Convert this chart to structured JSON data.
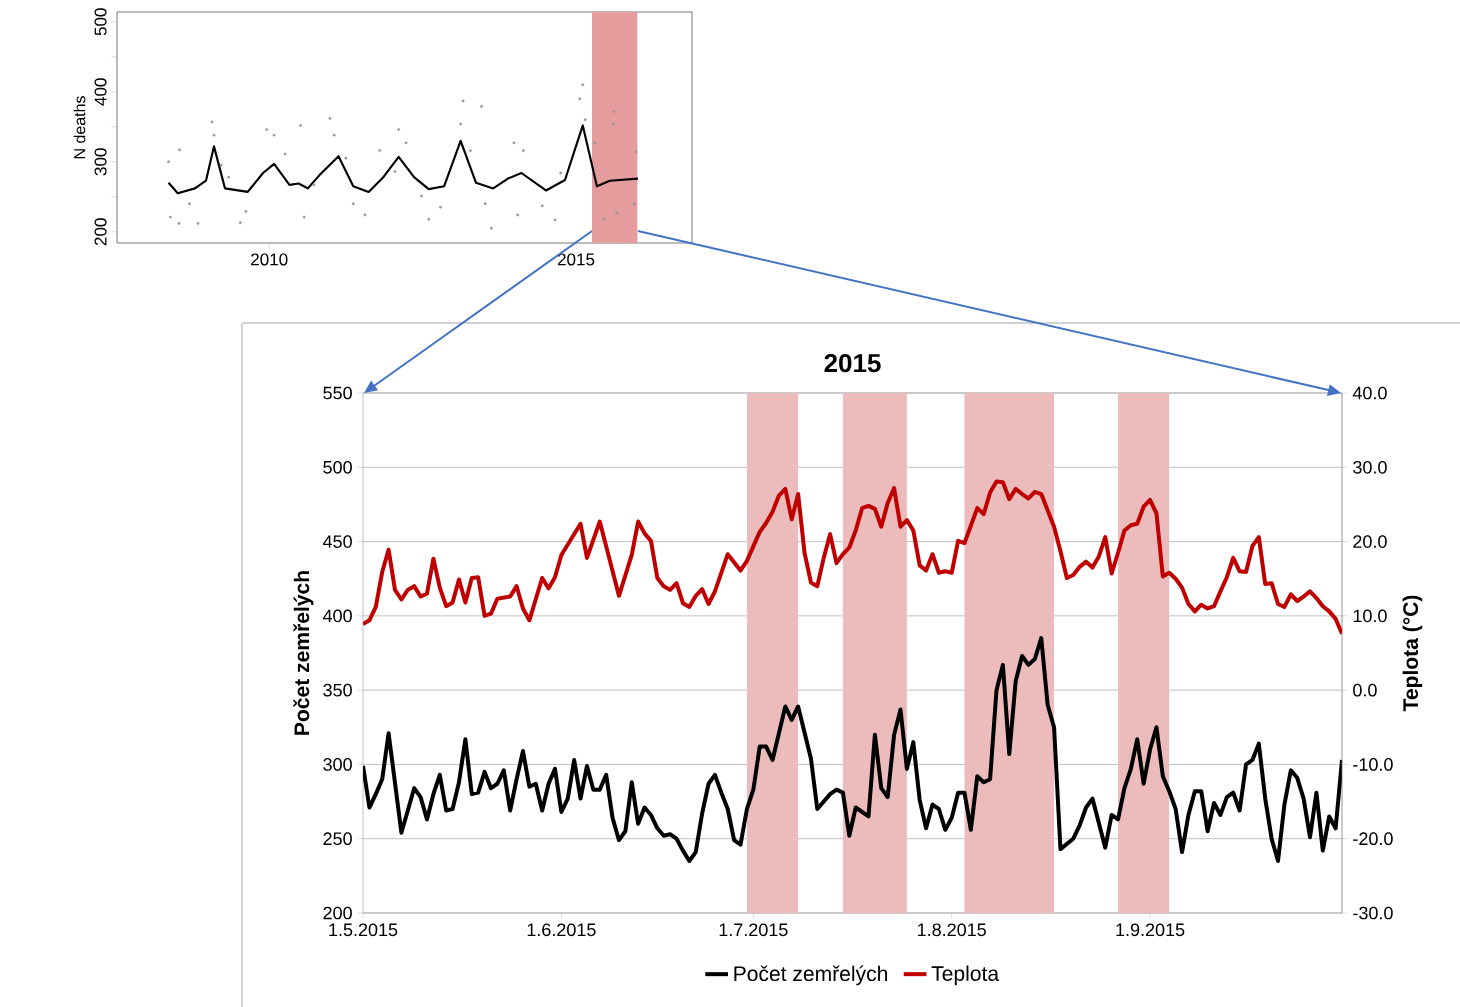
{
  "chart_data": [
    {
      "type": "scatter",
      "ylabel": "N deaths",
      "xlim": [
        2007.52,
        2016.89
      ],
      "xticks": [
        2010,
        2015
      ],
      "ylim": [
        184,
        514
      ],
      "yticks": [
        200,
        {
          "value": 250,
          "label": null
        },
        300,
        {
          "value": 350,
          "label": null
        },
        400,
        {
          "value": 450,
          "label": null
        },
        500
      ],
      "bands": [
        {
          "axis": "x",
          "from": 2015.26,
          "to": 2016.0,
          "color": "#e49c9c"
        }
      ],
      "series": [
        {
          "color": "#999999",
          "x": [
            2008.36,
            2008.54,
            2008.39,
            2008.53,
            2008.84,
            2008.7,
            2009.07,
            2009.1,
            2009.22,
            2009.53,
            2009.62,
            2009.34,
            2009.96,
            2010.08,
            2010.26,
            2010.51,
            2010.57,
            2010.73,
            2010.99,
            2011.06,
            2011.25,
            2011.37,
            2011.56,
            2011.8,
            2012.11,
            2012.23,
            2012.05,
            2012.48,
            2012.6,
            2012.79,
            2013.16,
            2013.12,
            2013.28,
            2013.46,
            2013.62,
            2013.52,
            2013.99,
            2014.14,
            2014.05,
            2014.45,
            2014.66,
            2014.75,
            2015.06,
            2015.11,
            2015.15,
            2015.31,
            2015.62,
            2015.61,
            2015.46,
            2015.66,
            2015.98,
            2015.95
          ],
          "values": [
            300,
            317,
            221,
            212,
            212,
            240,
            357,
            338,
            295,
            213,
            229,
            278,
            346,
            338,
            311,
            352,
            221,
            267,
            362,
            338,
            305,
            240,
            224,
            316,
            346,
            327,
            286,
            251,
            218,
            235,
            387,
            354,
            316,
            379,
            205,
            240,
            327,
            316,
            224,
            237,
            217,
            284,
            390,
            410,
            360,
            327,
            372,
            354,
            218,
            227,
            314,
            240
          ]
        },
        {
          "type": "line",
          "color": "#000000",
          "x": [
            2008.36,
            2008.51,
            2008.79,
            2008.97,
            2009.1,
            2009.28,
            2009.65,
            2009.9,
            2010.08,
            2010.33,
            2010.48,
            2010.63,
            2010.82,
            2011.13,
            2011.37,
            2011.62,
            2011.86,
            2012.11,
            2012.36,
            2012.6,
            2012.85,
            2013.12,
            2013.37,
            2013.65,
            2013.89,
            2014.11,
            2014.51,
            2014.82,
            2015.11,
            2015.34,
            2015.55,
            2016.01
          ],
          "values": [
            270,
            255,
            262,
            273,
            322,
            262,
            257,
            284,
            297,
            267,
            269,
            262,
            281,
            308,
            265,
            257,
            278,
            307,
            278,
            261,
            265,
            330,
            270,
            262,
            276,
            284,
            259,
            274,
            352,
            265,
            273,
            276
          ]
        }
      ]
    },
    {
      "type": "line",
      "title": "2015",
      "ylabel": "Počet zemřelých",
      "y2label": "Teplota (°C)",
      "xlim": [
        "2015-05-01",
        "2015-10-01"
      ],
      "xticks": [
        {
          "value": "2015-05-01",
          "label": "1.5.2015"
        },
        {
          "value": "2015-06-01",
          "label": "1.6.2015"
        },
        {
          "value": "2015-07-01",
          "label": "1.7.2015"
        },
        {
          "value": "2015-08-01",
          "label": "1.8.2015"
        },
        {
          "value": "2015-09-01",
          "label": "1.9.2015"
        }
      ],
      "ylim": [
        200,
        550
      ],
      "yticks": [
        200,
        250,
        300,
        350,
        400,
        450,
        500,
        550
      ],
      "y2lim": [
        -30,
        40
      ],
      "y2ticks": [
        {
          "value": -30,
          "label": "-30.0"
        },
        {
          "value": -20,
          "label": "-20.0"
        },
        {
          "value": -10,
          "label": "-10.0"
        },
        {
          "value": 0,
          "label": "0.0"
        },
        {
          "value": 10,
          "label": "10.0"
        },
        {
          "value": 20,
          "label": "20.0"
        },
        {
          "value": 30,
          "label": "30.0"
        },
        {
          "value": 40,
          "label": "40.0"
        }
      ],
      "grid": "y",
      "legend": "bottom",
      "bands": [
        {
          "axis": "x",
          "from": "2015-06-30",
          "to": "2015-07-08",
          "color": "#ecbcbc"
        },
        {
          "axis": "x",
          "from": "2015-07-15",
          "to": "2015-07-25",
          "color": "#ecbcbc"
        },
        {
          "axis": "x",
          "from": "2015-08-03",
          "to": "2015-08-17",
          "color": "#ecbcbc"
        },
        {
          "axis": "x",
          "from": "2015-08-27",
          "to": "2015-09-04",
          "color": "#ecbcbc"
        }
      ],
      "series": [
        {
          "name": "Počet zemřelých",
          "color": "#000000",
          "x": [
            "2015-05-01",
            "2015-05-02",
            "2015-05-03",
            "2015-05-04",
            "2015-05-05",
            "2015-05-07",
            "2015-05-08",
            "2015-05-09",
            "2015-05-10",
            "2015-05-11",
            "2015-05-12",
            "2015-05-13",
            "2015-05-14",
            "2015-05-15",
            "2015-05-16",
            "2015-05-17",
            "2015-05-18",
            "2015-05-19",
            "2015-05-20",
            "2015-05-21",
            "2015-05-22",
            "2015-05-23",
            "2015-05-24",
            "2015-05-25",
            "2015-05-26",
            "2015-05-27",
            "2015-05-28",
            "2015-05-29",
            "2015-05-30",
            "2015-05-31",
            "2015-06-01",
            "2015-06-02",
            "2015-06-03",
            "2015-06-04",
            "2015-06-05",
            "2015-06-06",
            "2015-06-07",
            "2015-06-08",
            "2015-06-09",
            "2015-06-10",
            "2015-06-11",
            "2015-06-12",
            "2015-06-13",
            "2015-06-14",
            "2015-06-15",
            "2015-06-16",
            "2015-06-17",
            "2015-06-18",
            "2015-06-19",
            "2015-06-20",
            "2015-06-21",
            "2015-06-22",
            "2015-06-23",
            "2015-06-24",
            "2015-06-25",
            "2015-06-26",
            "2015-06-27",
            "2015-06-28",
            "2015-06-29",
            "2015-06-30",
            "2015-07-01",
            "2015-07-02",
            "2015-07-03",
            "2015-07-04",
            "2015-07-06",
            "2015-07-07",
            "2015-07-08",
            "2015-07-10",
            "2015-07-11",
            "2015-07-13",
            "2015-07-14",
            "2015-07-15",
            "2015-07-16",
            "2015-07-17",
            "2015-07-19",
            "2015-07-20",
            "2015-07-21",
            "2015-07-22",
            "2015-07-23",
            "2015-07-24",
            "2015-07-25",
            "2015-07-26",
            "2015-07-27",
            "2015-07-28",
            "2015-07-29",
            "2015-07-30",
            "2015-07-31",
            "2015-08-01",
            "2015-08-02",
            "2015-08-03",
            "2015-08-04",
            "2015-08-05",
            "2015-08-06",
            "2015-08-07",
            "2015-08-08",
            "2015-08-09",
            "2015-08-10",
            "2015-08-11",
            "2015-08-12",
            "2015-08-13",
            "2015-08-14",
            "2015-08-15",
            "2015-08-16",
            "2015-08-17",
            "2015-08-18",
            "2015-08-20",
            "2015-08-21",
            "2015-08-22",
            "2015-08-23",
            "2015-08-25",
            "2015-08-26",
            "2015-08-27",
            "2015-08-28",
            "2015-08-29",
            "2015-08-30",
            "2015-08-31",
            "2015-09-01",
            "2015-09-02",
            "2015-09-03",
            "2015-09-04",
            "2015-09-05",
            "2015-09-06",
            "2015-09-07",
            "2015-09-08",
            "2015-09-09",
            "2015-09-10",
            "2015-09-11",
            "2015-09-12",
            "2015-09-13",
            "2015-09-14",
            "2015-09-15",
            "2015-09-16",
            "2015-09-17",
            "2015-09-18",
            "2015-09-19",
            "2015-09-20",
            "2015-09-21",
            "2015-09-22",
            "2015-09-23",
            "2015-09-24",
            "2015-09-25",
            "2015-09-26",
            "2015-09-27",
            "2015-09-28",
            "2015-09-29",
            "2015-09-30",
            "2015-10-01"
          ],
          "values": [
            299,
            271,
            280,
            290,
            321,
            254,
            269,
            284,
            278,
            263,
            280,
            293,
            269,
            270,
            288,
            317,
            280,
            281,
            295,
            284,
            287,
            296,
            269,
            290,
            309,
            285,
            287,
            269,
            287,
            297,
            268,
            277,
            303,
            277,
            299,
            283,
            283,
            293,
            264,
            249,
            255,
            288,
            260,
            271,
            266,
            257,
            252,
            253,
            250,
            242,
            235,
            241,
            267,
            287,
            293,
            281,
            270,
            249,
            246,
            270,
            283,
            312,
            312,
            303,
            339,
            330,
            339,
            304,
            270,
            280,
            283,
            281,
            252,
            271,
            265,
            320,
            284,
            278,
            320,
            337,
            297,
            315,
            276,
            257,
            273,
            270,
            256,
            264,
            281,
            281,
            256,
            292,
            288,
            290,
            350,
            367,
            307,
            356,
            373,
            367,
            371,
            385,
            340,
            325,
            243,
            250,
            259,
            271,
            277,
            244,
            266,
            263,
            284,
            297,
            317,
            287,
            310,
            325,
            292,
            282,
            270,
            241,
            266,
            282,
            282,
            255,
            274,
            266,
            278,
            281,
            269,
            300,
            303,
            314,
            277,
            250,
            235,
            273,
            296,
            291,
            277,
            251,
            281,
            242,
            265,
            257,
            303
          ]
        },
        {
          "name": "Teplota",
          "color": "#c00000",
          "axis": "y2",
          "x": [
            "2015-05-01",
            "2015-05-02",
            "2015-05-03",
            "2015-05-04",
            "2015-05-05",
            "2015-05-06",
            "2015-05-07",
            "2015-05-08",
            "2015-05-09",
            "2015-05-10",
            "2015-05-11",
            "2015-05-12",
            "2015-05-13",
            "2015-05-14",
            "2015-05-15",
            "2015-05-16",
            "2015-05-17",
            "2015-05-18",
            "2015-05-19",
            "2015-05-20",
            "2015-05-21",
            "2015-05-22",
            "2015-05-24",
            "2015-05-25",
            "2015-05-26",
            "2015-05-27",
            "2015-05-29",
            "2015-05-30",
            "2015-05-31",
            "2015-06-01",
            "2015-06-04",
            "2015-06-05",
            "2015-06-07",
            "2015-06-10",
            "2015-06-12",
            "2015-06-13",
            "2015-06-14",
            "2015-06-15",
            "2015-06-16",
            "2015-06-17",
            "2015-06-18",
            "2015-06-19",
            "2015-06-20",
            "2015-06-21",
            "2015-06-22",
            "2015-06-23",
            "2015-06-24",
            "2015-06-25",
            "2015-06-27",
            "2015-06-29",
            "2015-06-30",
            "2015-07-02",
            "2015-07-03",
            "2015-07-04",
            "2015-07-05",
            "2015-07-06",
            "2015-07-07",
            "2015-07-08",
            "2015-07-09",
            "2015-07-10",
            "2015-07-11",
            "2015-07-12",
            "2015-07-13",
            "2015-07-14",
            "2015-07-15",
            "2015-07-16",
            "2015-07-17",
            "2015-07-18",
            "2015-07-19",
            "2015-07-20",
            "2015-07-21",
            "2015-07-22",
            "2015-07-23",
            "2015-07-24",
            "2015-07-25",
            "2015-07-26",
            "2015-07-27",
            "2015-07-28",
            "2015-07-29",
            "2015-07-30",
            "2015-07-31",
            "2015-08-01",
            "2015-08-02",
            "2015-08-03",
            "2015-08-05",
            "2015-08-06",
            "2015-08-07",
            "2015-08-08",
            "2015-08-09",
            "2015-08-10",
            "2015-08-11",
            "2015-08-12",
            "2015-08-13",
            "2015-08-14",
            "2015-08-15",
            "2015-08-17",
            "2015-08-18",
            "2015-08-19",
            "2015-08-20",
            "2015-08-21",
            "2015-08-22",
            "2015-08-23",
            "2015-08-24",
            "2015-08-25",
            "2015-08-26",
            "2015-08-27",
            "2015-08-28",
            "2015-08-29",
            "2015-08-30",
            "2015-08-31",
            "2015-09-01",
            "2015-09-02",
            "2015-09-03",
            "2015-09-04",
            "2015-09-05",
            "2015-09-06",
            "2015-09-07",
            "2015-09-08",
            "2015-09-09",
            "2015-09-10",
            "2015-09-11",
            "2015-09-12",
            "2015-09-13",
            "2015-09-14",
            "2015-09-15",
            "2015-09-16",
            "2015-09-17",
            "2015-09-18",
            "2015-09-19",
            "2015-09-20",
            "2015-09-21",
            "2015-09-22",
            "2015-09-23",
            "2015-09-24",
            "2015-09-25",
            "2015-09-26",
            "2015-09-27",
            "2015-09-28",
            "2015-09-29",
            "2015-09-30",
            "2015-10-01"
          ],
          "values": [
            8.9,
            9.4,
            11.2,
            15.9,
            18.9,
            13.5,
            12.2,
            13.5,
            14.0,
            12.6,
            13.0,
            17.7,
            13.8,
            11.3,
            11.8,
            14.9,
            11.8,
            15.1,
            15.2,
            10.0,
            10.3,
            12.3,
            12.6,
            14.0,
            11.0,
            9.4,
            15.1,
            13.7,
            15.2,
            18.2,
            22.4,
            17.8,
            22.7,
            12.7,
            18.2,
            22.7,
            21.1,
            20.1,
            15.1,
            14.0,
            13.5,
            14.4,
            11.7,
            11.2,
            12.7,
            13.6,
            11.6,
            13.3,
            18.3,
            16.1,
            17.4,
            21.3,
            22.5,
            24.0,
            26.2,
            27.1,
            23.0,
            26.4,
            18.5,
            14.5,
            14.0,
            17.8,
            21.0,
            17.1,
            18.3,
            19.2,
            21.5,
            24.5,
            24.8,
            24.4,
            22.0,
            25.2,
            27.2,
            22.0,
            22.9,
            21.5,
            16.8,
            16.1,
            18.3,
            15.8,
            16.0,
            15.8,
            20.1,
            19.8,
            24.5,
            23.7,
            26.6,
            28.1,
            28.0,
            25.7,
            27.1,
            26.4,
            25.8,
            26.7,
            26.4,
            22.0,
            18.7,
            15.1,
            15.5,
            16.6,
            17.3,
            16.5,
            18.0,
            20.6,
            15.7,
            18.5,
            21.5,
            22.2,
            22.4,
            24.7,
            25.6,
            23.8,
            15.3,
            15.8,
            15.0,
            13.8,
            11.6,
            10.6,
            11.5,
            11.0,
            11.3,
            13.3,
            15.2,
            17.8,
            16.0,
            15.9,
            19.4,
            20.6,
            14.3,
            14.4,
            11.6,
            11.2,
            12.9,
            12.0,
            12.6,
            13.3,
            12.4,
            11.3,
            10.6,
            9.6,
            7.6
          ]
        }
      ]
    }
  ]
}
